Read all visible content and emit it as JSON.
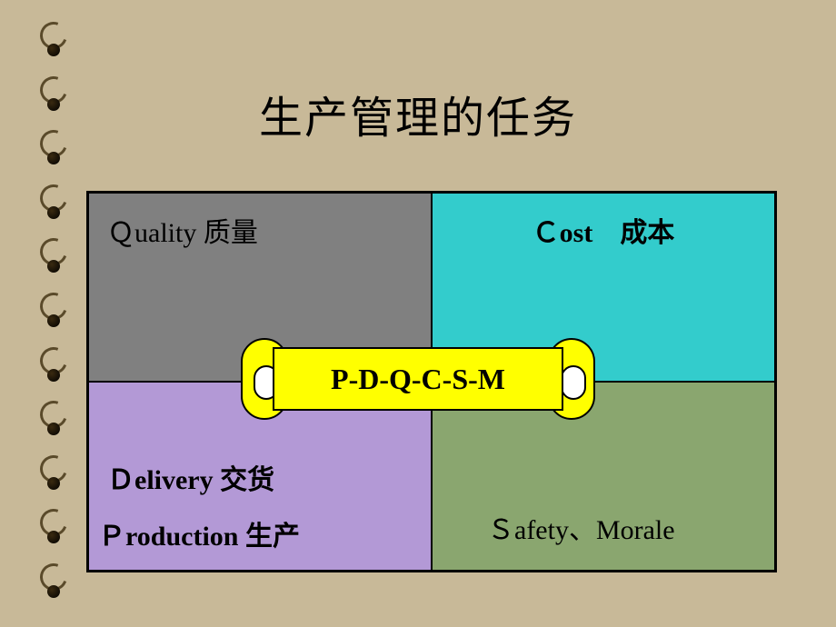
{
  "slide": {
    "background_color": "#c8b998",
    "texture_note": "burlap/canvas texture (approximated with flat color)"
  },
  "title": {
    "text": "生产管理的任务",
    "fontsize": 48,
    "color": "#000000"
  },
  "quadrants": {
    "layout": "2x2",
    "border_color": "#000000",
    "cells": {
      "top_left": {
        "label": "Ｑuality  质量",
        "bg_color": "#808080",
        "text_color": "#000000",
        "font_weight": "normal"
      },
      "top_right": {
        "label": "Ｃost　成本",
        "bg_color": "#33cccc",
        "text_color": "#000000",
        "font_weight": "bold"
      },
      "bottom_left": {
        "line1": "Ｄelivery 交货",
        "line2": "Ｐroduction  生产",
        "bg_color": "#b399d6",
        "text_color": "#000000",
        "font_weight": "bold"
      },
      "bottom_right": {
        "label": "Ｓafety、Morale",
        "bg_color": "#8aa66f",
        "text_color": "#000000",
        "font_weight": "normal"
      }
    }
  },
  "center_banner": {
    "text": "P-D-Q-C-S-M",
    "bg_color": "#ffff00",
    "border_color": "#000000",
    "fontsize": 32,
    "font_weight": "bold",
    "shape": "scroll"
  },
  "binding": {
    "ring_count": 11,
    "ring_color": "#5a4a2a",
    "hole_color": "#1a1208"
  }
}
